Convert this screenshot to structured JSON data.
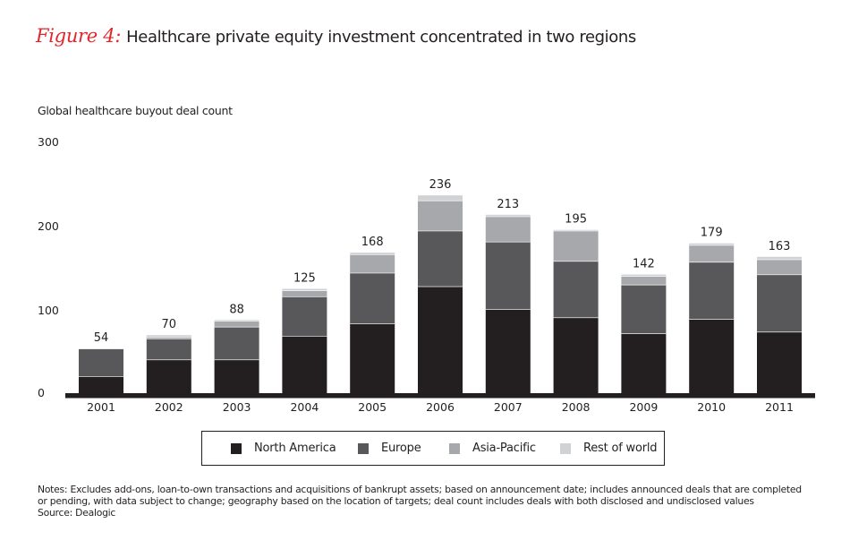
{
  "header": {
    "figure_label": "Figure 4:",
    "title": "Healthcare private equity investment concentrated in two regions"
  },
  "colors": {
    "north_america": "#231f20",
    "europe": "#58585a",
    "asia_pacific": "#a7a8ab",
    "rest_of_world": "#d1d2d4",
    "figure_label": "#e3262b"
  },
  "chart_data": {
    "type": "bar",
    "stacked": true,
    "title": "Healthcare private equity investment concentrated in two regions",
    "ylabel": "Global healthcare buyout deal count",
    "xlabel": "",
    "ylim": [
      0,
      300
    ],
    "yticks": [
      "0",
      "100",
      "200",
      "300"
    ],
    "ytick_values": [
      0,
      100,
      200,
      300
    ],
    "grid": false,
    "legend_position": "bottom",
    "categories": [
      "2001",
      "2002",
      "2003",
      "2004",
      "2005",
      "2006",
      "2007",
      "2008",
      "2009",
      "2010",
      "2011"
    ],
    "totals": [
      54,
      70,
      88,
      125,
      168,
      236,
      213,
      195,
      142,
      179,
      163
    ],
    "series": [
      {
        "name": "North America",
        "color": "#231f20",
        "values": [
          21,
          41,
          41,
          69,
          84,
          128,
          101,
          91,
          72,
          89,
          74
        ]
      },
      {
        "name": "Europe",
        "color": "#58585a",
        "values": [
          33,
          25,
          39,
          47,
          60,
          66,
          80,
          67,
          58,
          68,
          68
        ]
      },
      {
        "name": "Asia-Pacific",
        "color": "#a7a8ab",
        "values": [
          0,
          2,
          7,
          7,
          22,
          36,
          30,
          36,
          10,
          20,
          18
        ]
      },
      {
        "name": "Rest of world",
        "color": "#d1d2d4",
        "values": [
          0,
          2,
          1,
          2,
          2,
          6,
          2,
          1,
          2,
          2,
          3
        ]
      }
    ]
  },
  "legend": {
    "items": [
      {
        "label": "North America",
        "color": "#231f20"
      },
      {
        "label": "Europe",
        "color": "#58585a"
      },
      {
        "label": "Asia-Pacific",
        "color": "#a7a8ab"
      },
      {
        "label": "Rest of world",
        "color": "#d1d2d4"
      }
    ]
  },
  "notes": {
    "line1": "Notes: Excludes add-ons, loan-to-own transactions and acquisitions of bankrupt assets; based on announcement date; includes announced deals that are completed",
    "line2": "or pending, with data subject to change; geography based on the location of targets; deal count includes deals with both disclosed and undisclosed values",
    "source": "Source: Dealogic"
  }
}
